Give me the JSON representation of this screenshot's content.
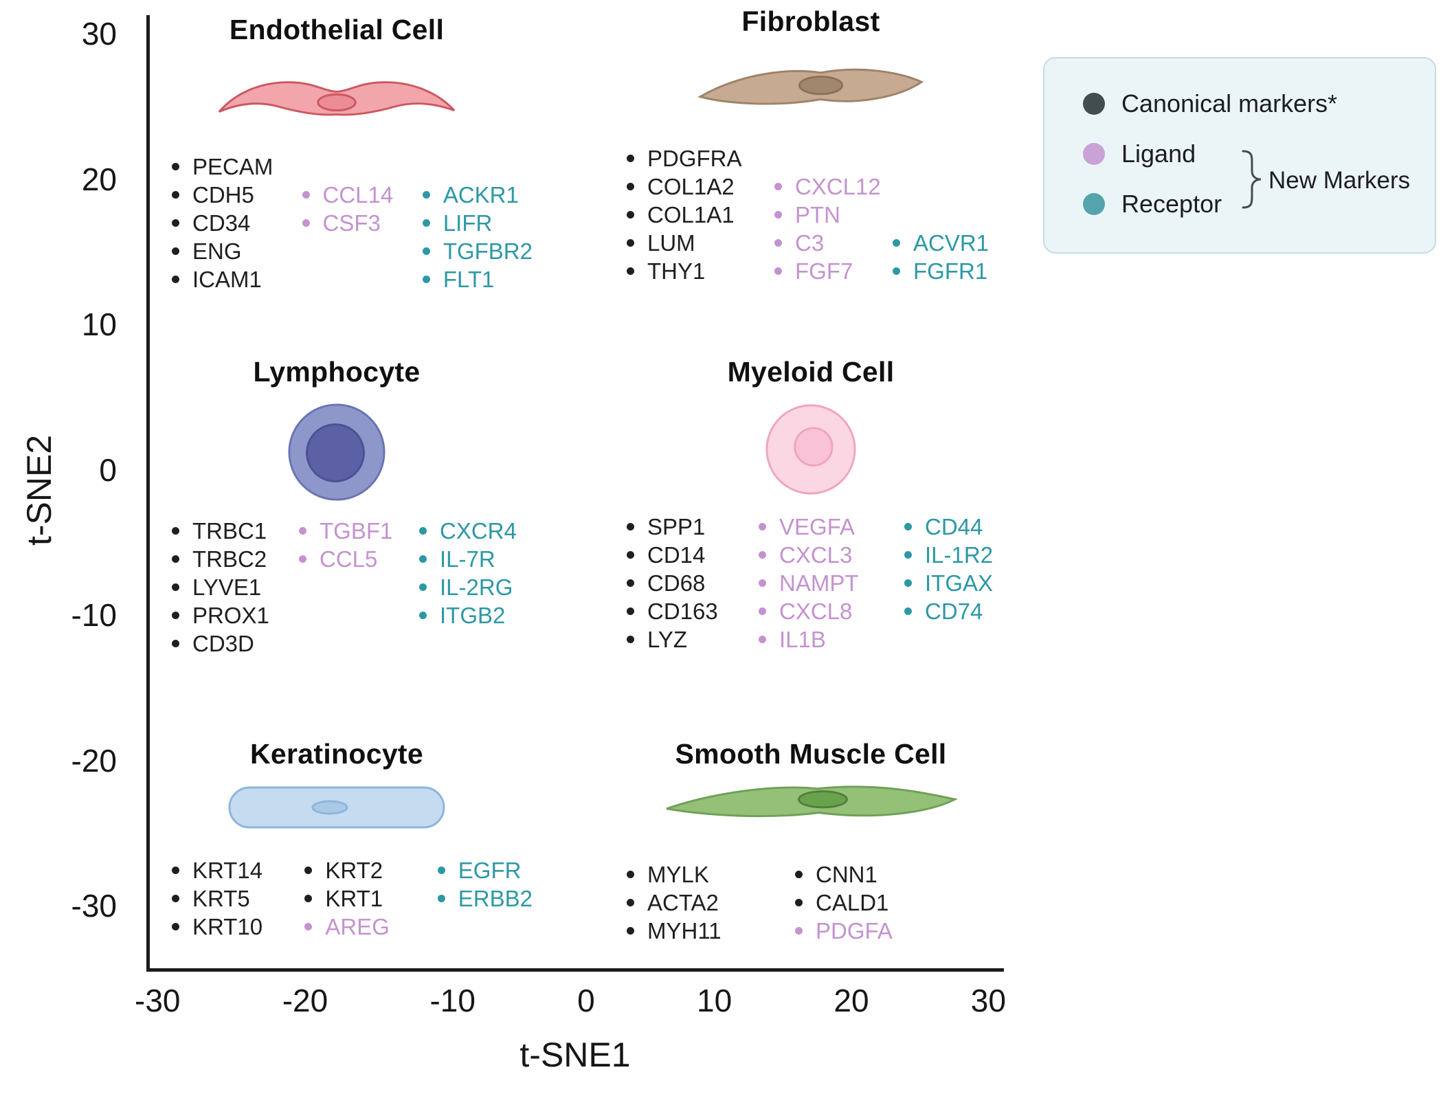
{
  "colors": {
    "canonical": "#1f1f1f",
    "ligand": "#c493cf",
    "receptor": "#2d98a5",
    "axis": "#1c1c1c",
    "legend_panel_bg": "#ebf5f8",
    "legend_panel_border": "#c3dce2"
  },
  "legend": {
    "items": [
      {
        "label": "Canonical markers*",
        "color": "#424d4f"
      },
      {
        "label": "Ligand",
        "color": "#c9a2d6"
      },
      {
        "label": "Receptor",
        "color": "#54a3ad"
      }
    ],
    "bracket_label": "New Markers"
  },
  "chart_data": {
    "type": "scatter",
    "title": "",
    "xlabel": "t-SNE1",
    "ylabel": "t-SNE2",
    "xlim": [
      -35,
      33
    ],
    "ylim": [
      -36,
      32
    ],
    "x_ticks": [
      -30,
      -20,
      -10,
      0,
      10,
      20,
      30
    ],
    "y_ticks": [
      30,
      20,
      10,
      0,
      -10,
      -20,
      -30
    ],
    "grid": false,
    "legend_position": "top-right",
    "cell_types": [
      {
        "name": "Endothelial Cell",
        "approx_position": {
          "x": -17,
          "y": 25
        },
        "canonical_markers": [
          "PECAM",
          "CDH5",
          "CD34",
          "ENG",
          "ICAM1"
        ],
        "new_ligand_markers": [
          "CCL14",
          "CSF3"
        ],
        "new_receptor_markers": [
          "ACKR1",
          "LIFR",
          "TGFBR2",
          "FLT1"
        ],
        "art": {
          "body": "#f2a5ab",
          "outline": "#cc5761",
          "nucleus": "#ec8d95",
          "nucleus_outline": "#cc5761"
        },
        "columns": [
          [
            {
              "label": "PECAM",
              "type": "canonical"
            },
            {
              "label": "CDH5",
              "type": "canonical"
            },
            {
              "label": "CD34",
              "type": "canonical"
            },
            {
              "label": "ENG",
              "type": "canonical"
            },
            {
              "label": "ICAM1",
              "type": "canonical"
            }
          ],
          [
            {
              "label": "CCL14",
              "type": "ligand"
            },
            {
              "label": "CSF3",
              "type": "ligand"
            }
          ],
          [
            {
              "label": "ACKR1",
              "type": "receptor"
            },
            {
              "label": "LIFR",
              "type": "receptor"
            },
            {
              "label": "TGFBR2",
              "type": "receptor"
            },
            {
              "label": "FLT1",
              "type": "receptor"
            }
          ]
        ]
      },
      {
        "name": "Fibroblast",
        "approx_position": {
          "x": 16,
          "y": 26
        },
        "canonical_markers": [
          "PDGFRA",
          "COL1A2",
          "COL1A1",
          "LUM",
          "THY1"
        ],
        "new_ligand_markers": [
          "CXCL12",
          "PTN",
          "C3",
          "FGF7"
        ],
        "new_receptor_markers": [
          "ACVR1",
          "FGFR1"
        ],
        "art": {
          "body": "#c6aa92",
          "outline": "#9e8369",
          "nucleus": "#a1876d",
          "nucleus_outline": "#8a7158"
        },
        "columns": [
          [
            {
              "label": "PDGFRA",
              "type": "canonical"
            },
            {
              "label": "COL1A2",
              "type": "canonical"
            },
            {
              "label": "COL1A1",
              "type": "canonical"
            },
            {
              "label": "LUM",
              "type": "canonical"
            },
            {
              "label": "THY1",
              "type": "canonical"
            }
          ],
          [
            {
              "label": "CXCL12",
              "type": "ligand"
            },
            {
              "label": "PTN",
              "type": "ligand"
            },
            {
              "label": "C3",
              "type": "ligand"
            },
            {
              "label": "FGF7",
              "type": "ligand"
            }
          ],
          [
            {
              "label": "ACVR1",
              "type": "receptor"
            },
            {
              "label": "FGFR1",
              "type": "receptor"
            }
          ]
        ]
      },
      {
        "name": "Lymphocyte",
        "approx_position": {
          "x": -17,
          "y": 1
        },
        "canonical_markers": [
          "TRBC1",
          "TRBC2",
          "LYVE1",
          "PROX1",
          "CD3D"
        ],
        "new_ligand_markers": [
          "TGBF1",
          "CCL5"
        ],
        "new_receptor_markers": [
          "CXCR4",
          "IL-7R",
          "IL-2RG",
          "ITGB2"
        ],
        "art": {
          "body": "#8d97c9",
          "outline": "#6a74b4",
          "nucleus": "#5c60a4",
          "nucleus_outline": "#4c5095"
        },
        "columns": [
          [
            {
              "label": "TRBC1",
              "type": "canonical"
            },
            {
              "label": "TRBC2",
              "type": "canonical"
            },
            {
              "label": "LYVE1",
              "type": "canonical"
            },
            {
              "label": "PROX1",
              "type": "canonical"
            },
            {
              "label": "CD3D",
              "type": "canonical"
            }
          ],
          [
            {
              "label": "TGBF1",
              "type": "ligand"
            },
            {
              "label": "CCL5",
              "type": "ligand"
            }
          ],
          [
            {
              "label": "CXCR4",
              "type": "receptor"
            },
            {
              "label": "IL-7R",
              "type": "receptor"
            },
            {
              "label": "IL-2RG",
              "type": "receptor"
            },
            {
              "label": "ITGB2",
              "type": "receptor"
            }
          ]
        ]
      },
      {
        "name": "Myeloid Cell",
        "approx_position": {
          "x": 16,
          "y": 2
        },
        "canonical_markers": [
          "SPP1",
          "CD14",
          "CD68",
          "CD163",
          "LYZ"
        ],
        "new_ligand_markers": [
          "VEGFA",
          "CXCL3",
          "NAMPT",
          "CXCL8",
          "IL1B"
        ],
        "new_receptor_markers": [
          "CD44",
          "IL-1R2",
          "ITGAX",
          "CD74"
        ],
        "art": {
          "body": "#fbd6e3",
          "outline": "#efa5bf",
          "nucleus": "#f9c2d6",
          "nucleus_outline": "#efa5bf"
        },
        "columns": [
          [
            {
              "label": "SPP1",
              "type": "canonical"
            },
            {
              "label": "CD14",
              "type": "canonical"
            },
            {
              "label": "CD68",
              "type": "canonical"
            },
            {
              "label": "CD163",
              "type": "canonical"
            },
            {
              "label": "LYZ",
              "type": "canonical"
            }
          ],
          [
            {
              "label": "VEGFA",
              "type": "ligand"
            },
            {
              "label": "CXCL3",
              "type": "ligand"
            },
            {
              "label": "NAMPT",
              "type": "ligand"
            },
            {
              "label": "CXCL8",
              "type": "ligand"
            },
            {
              "label": "IL1B",
              "type": "ligand"
            }
          ],
          [
            {
              "label": "CD44",
              "type": "receptor"
            },
            {
              "label": "IL-1R2",
              "type": "receptor"
            },
            {
              "label": "ITGAX",
              "type": "receptor"
            },
            {
              "label": "CD74",
              "type": "receptor"
            }
          ]
        ]
      },
      {
        "name": "Keratinocyte",
        "approx_position": {
          "x": -17,
          "y": -23
        },
        "canonical_markers": [
          "KRT14",
          "KRT5",
          "KRT10",
          "KRT2",
          "KRT1"
        ],
        "new_ligand_markers": [
          "AREG"
        ],
        "new_receptor_markers": [
          "EGFR",
          "ERBB2"
        ],
        "art": {
          "body": "#c5dbf0",
          "outline": "#8cb6dc",
          "nucleus": "#aac9e7",
          "nucleus_outline": "#8cb6dc"
        },
        "columns": [
          [
            {
              "label": "KRT14",
              "type": "canonical"
            },
            {
              "label": "KRT5",
              "type": "canonical"
            },
            {
              "label": "KRT10",
              "type": "canonical"
            }
          ],
          [
            {
              "label": "KRT2",
              "type": "canonical"
            },
            {
              "label": "KRT1",
              "type": "canonical"
            },
            {
              "label": "AREG",
              "type": "ligand"
            }
          ],
          [
            {
              "label": "EGFR",
              "type": "receptor"
            },
            {
              "label": "ERBB2",
              "type": "receptor"
            }
          ]
        ]
      },
      {
        "name": "Smooth Muscle Cell",
        "approx_position": {
          "x": 16,
          "y": -23
        },
        "canonical_markers": [
          "MYLK",
          "ACTA2",
          "MYH11",
          "CNN1",
          "CALD1"
        ],
        "new_ligand_markers": [
          "PDGFA"
        ],
        "new_receptor_markers": [],
        "art": {
          "body": "#94c078",
          "outline": "#6fa058",
          "nucleus": "#68a24c",
          "nucleus_outline": "#527f3c"
        },
        "columns": [
          [
            {
              "label": "MYLK",
              "type": "canonical"
            },
            {
              "label": "ACTA2",
              "type": "canonical"
            },
            {
              "label": "MYH11",
              "type": "canonical"
            }
          ],
          [
            {
              "label": "CNN1",
              "type": "canonical"
            },
            {
              "label": "CALD1",
              "type": "canonical"
            },
            {
              "label": "PDGFA",
              "type": "ligand"
            }
          ]
        ]
      }
    ]
  }
}
